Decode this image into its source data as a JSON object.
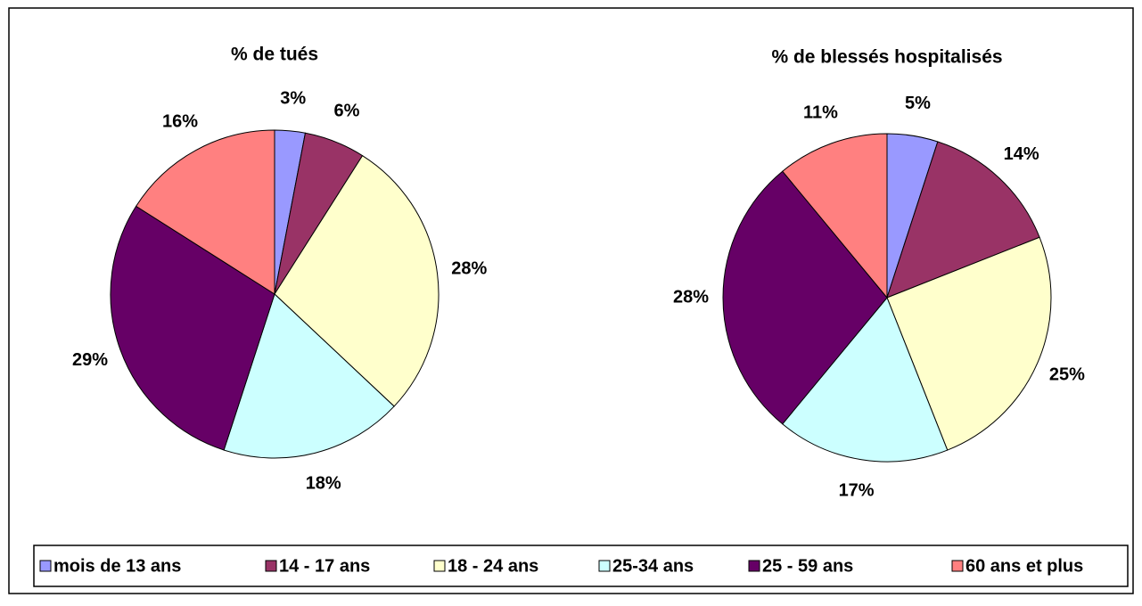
{
  "legend": {
    "labels": [
      "mois de 13 ans",
      "14 - 17 ans",
      "18 - 24 ans",
      "25-34 ans",
      "25 - 59 ans",
      "60 ans et plus"
    ],
    "colors": [
      "#9999ff",
      "#993366",
      "#ffffcc",
      "#ccffff",
      "#660066",
      "#ff8080"
    ]
  },
  "chart_data": [
    {
      "type": "pie",
      "title": "% de tués",
      "values": [
        3,
        6,
        28,
        18,
        29,
        16
      ],
      "value_labels": [
        "3%",
        "6%",
        "28%",
        "18%",
        "29%",
        "16%"
      ]
    },
    {
      "type": "pie",
      "title": "% de blessés hospitalisés",
      "values": [
        5,
        14,
        25,
        17,
        28,
        11
      ],
      "value_labels": [
        "5%",
        "14%",
        "25%",
        "17%",
        "28%",
        "11%"
      ]
    }
  ]
}
